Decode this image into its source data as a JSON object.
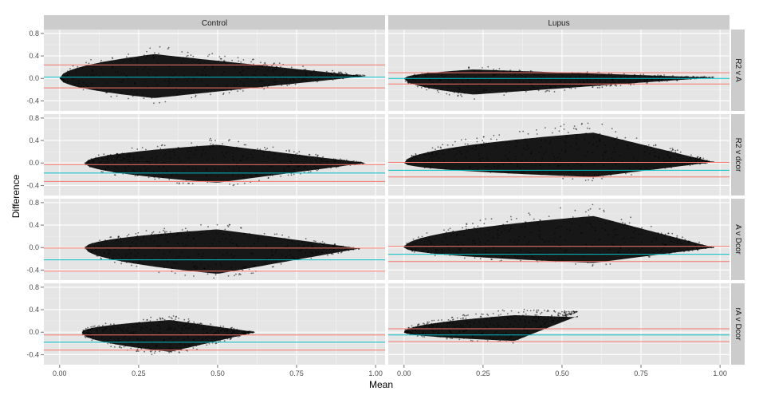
{
  "chart_data": {
    "type": "scatter",
    "facet_columns": [
      "Control",
      "Lupus"
    ],
    "facet_rows": [
      "R2 v A",
      "R2 v dcor",
      "A v Dcor",
      "rA v Dcor"
    ],
    "xlabel": "Mean",
    "ylabel": "Difference",
    "xlim": [
      -0.05,
      1.03
    ],
    "ylim": [
      -0.58,
      0.87
    ],
    "x_ticks": [
      "0.00",
      "0.25",
      "0.50",
      "0.75",
      "1.00"
    ],
    "y_ticks": [
      "-0.4",
      "0.0",
      "0.4",
      "0.8"
    ],
    "grid": true,
    "colors": {
      "panel_bg": "#e5e5e5",
      "strip_bg": "#cccccc",
      "grid_major": "#ffffff",
      "points": "#000000",
      "mean_line": "#00bfc4",
      "limit_lines": "#f8766d"
    },
    "panels": [
      {
        "column": "Control",
        "row": "R2 v A",
        "mean": 0.02,
        "upper": 0.24,
        "lower": -0.17,
        "points_shape": {
          "x_start": 0.0,
          "x_end": 0.97,
          "x_peak": 0.3,
          "upper_peak": 0.6,
          "lower_peak": -0.45,
          "y_end": 0.05
        }
      },
      {
        "column": "Lupus",
        "row": "R2 v A",
        "mean": 0.0,
        "upper": 0.1,
        "lower": -0.1,
        "points_shape": {
          "x_start": 0.0,
          "x_end": 0.98,
          "x_peak": 0.22,
          "upper_peak": 0.22,
          "lower_peak": -0.37,
          "y_end": 0.02
        }
      },
      {
        "column": "Control",
        "row": "R2 v dcor",
        "mean": -0.18,
        "upper": -0.03,
        "lower": -0.33,
        "points_shape": {
          "x_start": 0.08,
          "x_end": 0.97,
          "x_peak": 0.5,
          "upper_peak": 0.45,
          "lower_peak": -0.45,
          "y_end": 0.0
        }
      },
      {
        "column": "Lupus",
        "row": "R2 v dcor",
        "mean": -0.13,
        "upper": 0.01,
        "lower": -0.25,
        "points_shape": {
          "x_start": 0.0,
          "x_end": 0.98,
          "x_peak": 0.6,
          "upper_peak": 0.75,
          "lower_peak": -0.32,
          "y_end": 0.02
        }
      },
      {
        "column": "Control",
        "row": "A v Dcor",
        "mean": -0.22,
        "upper": -0.01,
        "lower": -0.42,
        "points_shape": {
          "x_start": 0.08,
          "x_end": 0.95,
          "x_peak": 0.5,
          "upper_peak": 0.45,
          "lower_peak": -0.6,
          "y_end": -0.02
        }
      },
      {
        "column": "Lupus",
        "row": "A v Dcor",
        "mean": -0.12,
        "upper": 0.02,
        "lower": -0.25,
        "points_shape": {
          "x_start": 0.0,
          "x_end": 0.98,
          "x_peak": 0.6,
          "upper_peak": 0.78,
          "lower_peak": -0.35,
          "y_end": 0.0
        }
      },
      {
        "column": "Control",
        "row": "rA v Dcor",
        "mean": -0.18,
        "upper": -0.05,
        "lower": -0.32,
        "points_shape": {
          "x_start": 0.07,
          "x_end": 0.62,
          "x_peak": 0.35,
          "upper_peak": 0.3,
          "lower_peak": -0.45,
          "y_end": 0.0
        }
      },
      {
        "column": "Lupus",
        "row": "rA v Dcor",
        "mean": -0.05,
        "upper": 0.06,
        "lower": -0.17,
        "points_shape": {
          "x_start": 0.0,
          "x_end": 0.55,
          "x_peak": 0.35,
          "upper_peak": 0.42,
          "lower_peak": -0.2,
          "y_end": 0.37
        }
      }
    ]
  }
}
